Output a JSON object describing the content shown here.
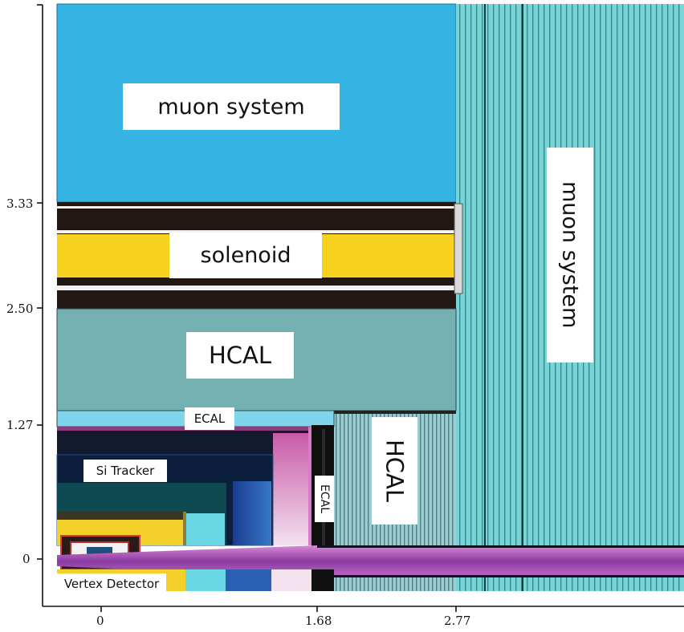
{
  "labels": {
    "muon_barrel": "muon system",
    "muon_endcap": "muon system",
    "solenoid": "solenoid",
    "hcal_barrel": "HCAL",
    "hcal_endcap": "HCAL",
    "ecal_barrel": "ECAL",
    "ecal_endcap": "ECAL",
    "si_tracker": "Si Tracker",
    "vertex_detector": "Vertex Detector"
  },
  "axes": {
    "y_ticks": [
      "3.33",
      "2.50",
      "1.27",
      "0"
    ],
    "x_ticks": [
      "0",
      "1.68",
      "2.77"
    ]
  },
  "colors": {
    "muon": "#36b4e4",
    "muon_endcap": "#7ad3d4",
    "solenoid_yellow": "#f6d21f",
    "coil_dark": "#231714",
    "hcal": "#75b1b2",
    "ecal": "#7fd5ec",
    "tracker_dark": "#141a2e",
    "beampipe": "#b462c4"
  }
}
